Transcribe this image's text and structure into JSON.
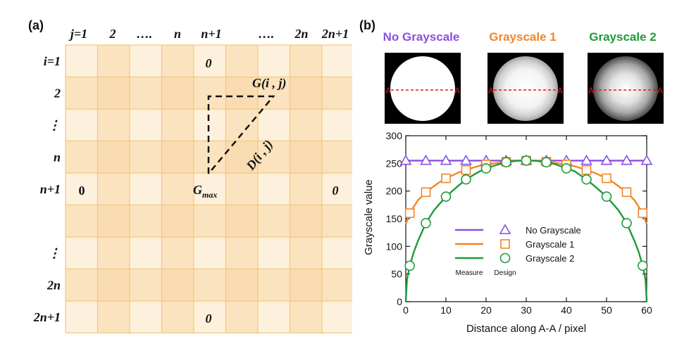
{
  "panel_a": {
    "label": "(a)",
    "col_headers": [
      "j=1",
      "2",
      "….",
      "n",
      "n+1",
      "….",
      "2n",
      "2n+1"
    ],
    "row_headers": [
      "i=1",
      "2",
      "⋮",
      "n",
      "n+1",
      "",
      "⋮",
      "2n",
      "2n+1"
    ],
    "cell_zero_top": "0",
    "cell_zero_left": "0",
    "cell_zero_right": "0",
    "cell_zero_bottom": "0",
    "g_label": "G(i , j)",
    "d_label": "D(i , j)",
    "gmax_main": "G",
    "gmax_sub": "max",
    "grid_line_color": "#f3c878",
    "shade_colors": [
      "#fdf1de",
      "#fbe3c0"
    ]
  },
  "panel_b": {
    "label": "(b)",
    "thumbnails": [
      {
        "title": "No Grayscale",
        "color": "#8a4fe0",
        "profile": "flat"
      },
      {
        "title": "Grayscale 1",
        "color": "#f0862a",
        "profile": "soft"
      },
      {
        "title": "Grayscale 2",
        "color": "#1f9a3a",
        "profile": "strong"
      }
    ],
    "line_marker_left": "A",
    "line_marker_right": "A"
  },
  "chart_data": {
    "type": "line",
    "title": "",
    "xlabel": "Distance along A-A / pixel",
    "ylabel": "Grayscale value",
    "xlim": [
      0,
      60
    ],
    "ylim": [
      0,
      300
    ],
    "xticks": [
      0,
      10,
      20,
      30,
      40,
      50,
      60
    ],
    "yticks": [
      0,
      50,
      100,
      150,
      200,
      250,
      300
    ],
    "legend_position": "lower-center",
    "legend_col_headers": [
      "Measure",
      "Design"
    ],
    "series": [
      {
        "name": "No Grayscale",
        "color": "#8a4fe0",
        "marker": "triangle",
        "design_x": [
          0,
          5,
          10,
          15,
          20,
          25,
          30,
          35,
          40,
          45,
          50,
          55,
          60
        ],
        "design_y": [
          255,
          255,
          255,
          255,
          255,
          255,
          255,
          255,
          255,
          255,
          255,
          255,
          255
        ],
        "measure_x": [
          0,
          60
        ],
        "measure_y": [
          255,
          255
        ]
      },
      {
        "name": "Grayscale 1",
        "color": "#f0862a",
        "marker": "square",
        "design_x": [
          1,
          5,
          10,
          15,
          20,
          25,
          30,
          35,
          40,
          45,
          50,
          55,
          59
        ],
        "design_y": [
          160,
          198,
          223,
          238,
          248,
          253,
          255,
          253,
          248,
          238,
          223,
          198,
          160
        ],
        "measure_x": [
          0,
          1,
          3,
          5,
          8,
          10,
          13,
          15,
          18,
          20,
          23,
          25,
          28,
          30,
          32,
          35,
          37,
          40,
          42,
          45,
          47,
          50,
          52,
          55,
          57,
          59,
          60
        ],
        "measure_y": [
          140,
          160,
          183,
          198,
          214,
          223,
          233,
          238,
          245,
          248,
          251,
          253,
          255,
          255,
          255,
          253,
          251,
          248,
          245,
          238,
          233,
          223,
          214,
          198,
          183,
          160,
          140
        ]
      },
      {
        "name": "Grayscale 2",
        "color": "#1f9a3a",
        "marker": "circle",
        "design_x": [
          1,
          5,
          10,
          15,
          20,
          25,
          30,
          35,
          40,
          45,
          50,
          55,
          59
        ],
        "design_y": [
          65,
          142,
          190,
          221,
          241,
          252,
          255,
          252,
          241,
          221,
          190,
          142,
          65
        ],
        "measure_x": [
          0,
          0.3,
          1,
          2,
          3,
          5,
          7,
          10,
          13,
          15,
          18,
          20,
          23,
          25,
          28,
          30,
          32,
          35,
          37,
          40,
          42,
          45,
          47,
          50,
          53,
          55,
          57,
          58,
          59,
          59.7,
          60
        ],
        "measure_y": [
          0,
          40,
          65,
          90,
          109,
          142,
          165,
          190,
          209,
          221,
          234,
          241,
          248,
          252,
          255,
          255,
          255,
          252,
          249,
          241,
          236,
          221,
          209,
          190,
          165,
          142,
          109,
          90,
          65,
          40,
          0
        ]
      }
    ]
  }
}
